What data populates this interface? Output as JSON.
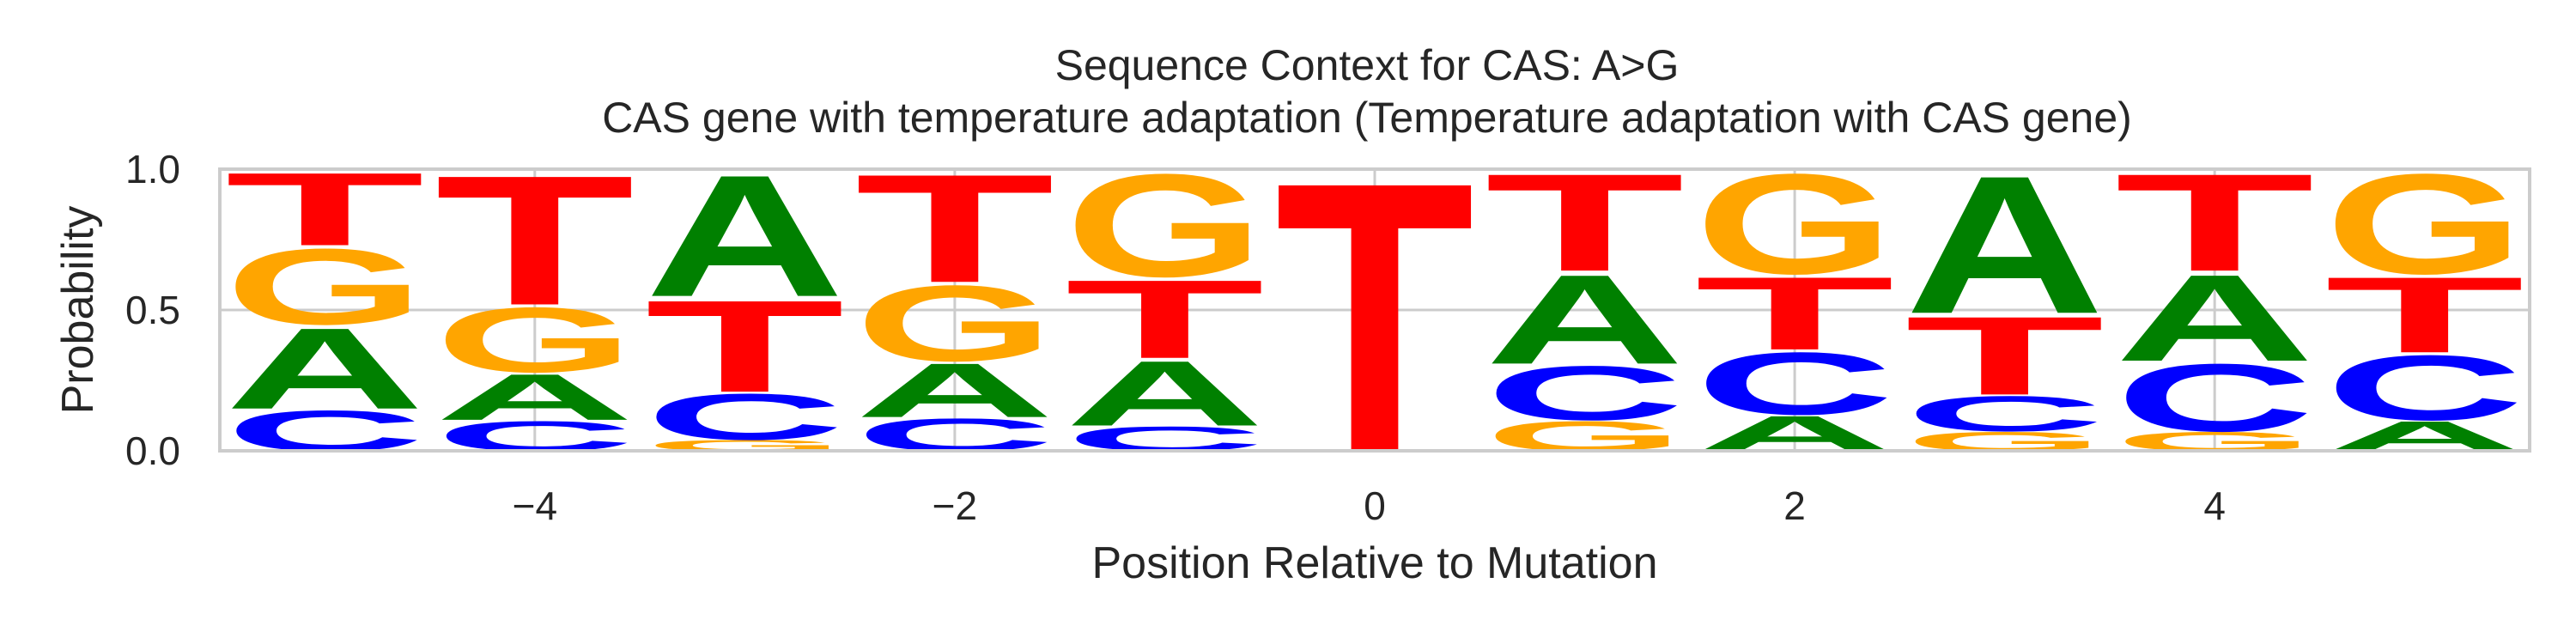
{
  "chart_data": {
    "type": "sequence-logo",
    "title": "Sequence Context for CAS: A>G",
    "subtitle": "CAS gene with temperature adaptation (Temperature adaptation with CAS gene)",
    "xlabel": "Position Relative to Mutation",
    "ylabel": "Probability",
    "xlim": [
      -5.5,
      5.5
    ],
    "ylim": [
      0,
      1.0
    ],
    "x_ticks": [
      -4,
      -2,
      0,
      2,
      4
    ],
    "x_tick_labels": [
      "−4",
      "−2",
      "0",
      "2",
      "4"
    ],
    "y_ticks": [
      0.0,
      0.5,
      1.0
    ],
    "y_tick_labels": [
      "0.0",
      "0.5",
      "1.0"
    ],
    "grid": true,
    "colors": {
      "A": "#008000",
      "C": "#0000ff",
      "G": "#ffa500",
      "T": "#ff0000"
    },
    "positions": [
      {
        "x": -5,
        "stack": [
          {
            "base": "C",
            "p": 0.15
          },
          {
            "base": "A",
            "p": 0.3
          },
          {
            "base": "G",
            "p": 0.28
          },
          {
            "base": "T",
            "p": 0.27
          }
        ]
      },
      {
        "x": -4,
        "stack": [
          {
            "base": "C",
            "p": 0.11
          },
          {
            "base": "A",
            "p": 0.17
          },
          {
            "base": "G",
            "p": 0.24
          },
          {
            "base": "T",
            "p": 0.48
          }
        ]
      },
      {
        "x": -3,
        "stack": [
          {
            "base": "G",
            "p": 0.04
          },
          {
            "base": "C",
            "p": 0.17
          },
          {
            "base": "T",
            "p": 0.34
          },
          {
            "base": "A",
            "p": 0.45
          }
        ]
      },
      {
        "x": -2,
        "stack": [
          {
            "base": "C",
            "p": 0.12
          },
          {
            "base": "A",
            "p": 0.2
          },
          {
            "base": "G",
            "p": 0.28
          },
          {
            "base": "T",
            "p": 0.4
          }
        ]
      },
      {
        "x": -1,
        "stack": [
          {
            "base": "C",
            "p": 0.09
          },
          {
            "base": "A",
            "p": 0.24
          },
          {
            "base": "T",
            "p": 0.29
          },
          {
            "base": "G",
            "p": 0.38
          }
        ]
      },
      {
        "x": 0,
        "stack": [
          {
            "base": "T",
            "p": 1.0
          }
        ]
      },
      {
        "x": 1,
        "stack": [
          {
            "base": "G",
            "p": 0.11
          },
          {
            "base": "C",
            "p": 0.2
          },
          {
            "base": "A",
            "p": 0.33
          },
          {
            "base": "T",
            "p": 0.36
          }
        ]
      },
      {
        "x": 2,
        "stack": [
          {
            "base": "A",
            "p": 0.13
          },
          {
            "base": "C",
            "p": 0.23
          },
          {
            "base": "T",
            "p": 0.27
          },
          {
            "base": "G",
            "p": 0.37
          }
        ]
      },
      {
        "x": 3,
        "stack": [
          {
            "base": "G",
            "p": 0.07
          },
          {
            "base": "C",
            "p": 0.13
          },
          {
            "base": "T",
            "p": 0.29
          },
          {
            "base": "A",
            "p": 0.51
          }
        ]
      },
      {
        "x": 4,
        "stack": [
          {
            "base": "G",
            "p": 0.07
          },
          {
            "base": "C",
            "p": 0.25
          },
          {
            "base": "A",
            "p": 0.32
          },
          {
            "base": "T",
            "p": 0.36
          }
        ]
      },
      {
        "x": 5,
        "stack": [
          {
            "base": "A",
            "p": 0.11
          },
          {
            "base": "C",
            "p": 0.24
          },
          {
            "base": "T",
            "p": 0.28
          },
          {
            "base": "G",
            "p": 0.37
          }
        ]
      }
    ]
  }
}
